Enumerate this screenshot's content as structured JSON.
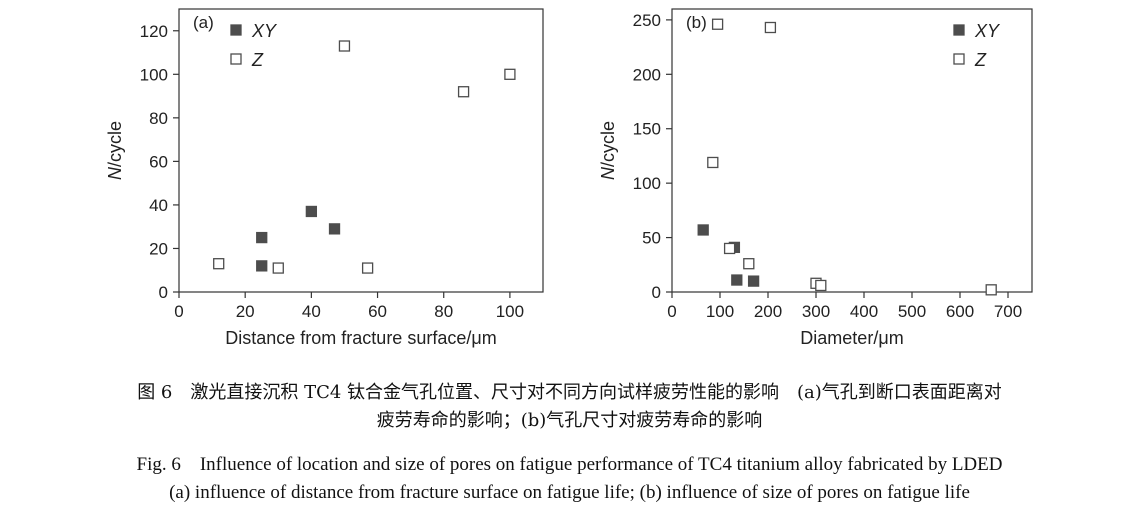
{
  "chart_data": [
    {
      "type": "scatter",
      "panel_label": "(a)",
      "xlabel": "Distance from fracture surface/μm",
      "ylabel_italic": "N",
      "ylabel_rest": "/cycle",
      "xlim": [
        0,
        110
      ],
      "ylim": [
        0,
        130
      ],
      "xticks": [
        0,
        20,
        40,
        60,
        80,
        100
      ],
      "yticks": [
        0,
        20,
        40,
        60,
        80,
        100,
        120
      ],
      "legend_position": "top-left",
      "series": [
        {
          "name": "XY",
          "marker": "filled-square",
          "color": "#4d4d4d",
          "points": [
            [
              25,
              25
            ],
            [
              25,
              12
            ],
            [
              40,
              37
            ],
            [
              47,
              29
            ]
          ]
        },
        {
          "name": "Z",
          "marker": "open-square",
          "color": "#4d4d4d",
          "points": [
            [
              12,
              13
            ],
            [
              30,
              11
            ],
            [
              50,
              113
            ],
            [
              57,
              11
            ],
            [
              86,
              92
            ],
            [
              100,
              100
            ]
          ]
        }
      ]
    },
    {
      "type": "scatter",
      "panel_label": "(b)",
      "xlabel": "Diameter/μm",
      "ylabel_italic": "N",
      "ylabel_rest": "/cycle",
      "xlim": [
        0,
        750
      ],
      "ylim": [
        0,
        260
      ],
      "xticks": [
        0,
        100,
        200,
        300,
        400,
        500,
        600,
        700
      ],
      "yticks": [
        0,
        50,
        100,
        150,
        200,
        250
      ],
      "legend_position": "top-right",
      "series": [
        {
          "name": "XY",
          "marker": "filled-square",
          "color": "#4d4d4d",
          "points": [
            [
              65,
              57
            ],
            [
              130,
              41
            ],
            [
              135,
              11
            ],
            [
              170,
              10
            ]
          ]
        },
        {
          "name": "Z",
          "marker": "open-square",
          "color": "#4d4d4d",
          "points": [
            [
              95,
              246
            ],
            [
              85,
              119
            ],
            [
              120,
              40
            ],
            [
              160,
              26
            ],
            [
              300,
              8
            ],
            [
              310,
              6
            ],
            [
              205,
              243
            ],
            [
              665,
              2
            ]
          ]
        }
      ]
    }
  ],
  "caption": {
    "cn_line1": "图 6　激光直接沉积 TC4 钛合金气孔位置、尺寸对不同方向试样疲劳性能的影响　(a)气孔到断口表面距离对",
    "cn_line2": "疲劳寿命的影响；(b)气孔尺寸对疲劳寿命的影响",
    "en_line1": "Fig. 6　Influence of location and size of pores on fatigue performance of TC4 titanium alloy fabricated by LDED",
    "en_line2": "(a) influence of distance from fracture surface on fatigue life; (b) influence of size of pores on fatigue life"
  }
}
